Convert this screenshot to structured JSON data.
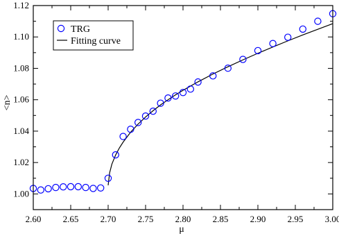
{
  "chart_data": {
    "type": "scatter",
    "xlabel": "μ",
    "ylabel": "<n>",
    "xlim": [
      2.6,
      3.0
    ],
    "ylim": [
      0.99,
      1.12
    ],
    "x_ticks": [
      2.6,
      2.65,
      2.7,
      2.75,
      2.8,
      2.85,
      2.9,
      2.95,
      3.0
    ],
    "x_tick_labels": [
      "2.60",
      "2.65",
      "2.70",
      "2.75",
      "2.80",
      "2.85",
      "2.90",
      "2.95",
      "3.00"
    ],
    "y_ticks": [
      1.0,
      1.02,
      1.04,
      1.06,
      1.08,
      1.1,
      1.12
    ],
    "y_tick_labels": [
      "1.00",
      "1.02",
      "1.04",
      "1.06",
      "1.08",
      "1.10",
      "1.12"
    ],
    "grid": false,
    "legend_position": "top-left",
    "series": [
      {
        "name": "TRG",
        "kind": "scatter",
        "marker": "open-circle",
        "color": "#0000ff",
        "points": [
          [
            2.6,
            1.0035
          ],
          [
            2.61,
            1.0025
          ],
          [
            2.62,
            1.0033
          ],
          [
            2.63,
            1.0041
          ],
          [
            2.64,
            1.0045
          ],
          [
            2.65,
            1.0046
          ],
          [
            2.66,
            1.0046
          ],
          [
            2.67,
            1.0041
          ],
          [
            2.68,
            1.0035
          ],
          [
            2.69,
            1.0038
          ],
          [
            2.7,
            1.01
          ],
          [
            2.71,
            1.0249
          ],
          [
            2.72,
            1.0366
          ],
          [
            2.73,
            1.0412
          ],
          [
            2.74,
            1.0455
          ],
          [
            2.75,
            1.0496
          ],
          [
            2.76,
            1.0527
          ],
          [
            2.77,
            1.0578
          ],
          [
            2.78,
            1.0611
          ],
          [
            2.79,
            1.0624
          ],
          [
            2.8,
            1.0646
          ],
          [
            2.81,
            1.0668
          ],
          [
            2.82,
            1.0713
          ],
          [
            2.84,
            1.0752
          ],
          [
            2.86,
            1.0801
          ],
          [
            2.88,
            1.0857
          ],
          [
            2.9,
            1.0913
          ],
          [
            2.92,
            1.0958
          ],
          [
            2.94,
            1.0998
          ],
          [
            2.96,
            1.105
          ],
          [
            2.98,
            1.11
          ],
          [
            3.0,
            1.1148
          ]
        ]
      },
      {
        "name": "Fitting curve",
        "kind": "line",
        "color": "#000000",
        "points": [
          [
            2.7,
            1.0055
          ],
          [
            2.702,
            1.0135
          ],
          [
            2.705,
            1.019
          ],
          [
            2.71,
            1.0248
          ],
          [
            2.715,
            1.0293
          ],
          [
            2.72,
            1.033
          ],
          [
            2.73,
            1.0393
          ],
          [
            2.74,
            1.0445
          ],
          [
            2.75,
            1.049
          ],
          [
            2.76,
            1.053
          ],
          [
            2.77,
            1.0567
          ],
          [
            2.78,
            1.06
          ],
          [
            2.79,
            1.0631
          ],
          [
            2.8,
            1.066
          ],
          [
            2.82,
            1.0714
          ],
          [
            2.84,
            1.0764
          ],
          [
            2.86,
            1.081
          ],
          [
            2.88,
            1.0854
          ],
          [
            2.9,
            1.0896
          ],
          [
            2.92,
            1.0936
          ],
          [
            2.94,
            1.0975
          ],
          [
            2.96,
            1.1013
          ],
          [
            2.98,
            1.1049
          ],
          [
            3.0,
            1.1085
          ]
        ]
      }
    ]
  }
}
